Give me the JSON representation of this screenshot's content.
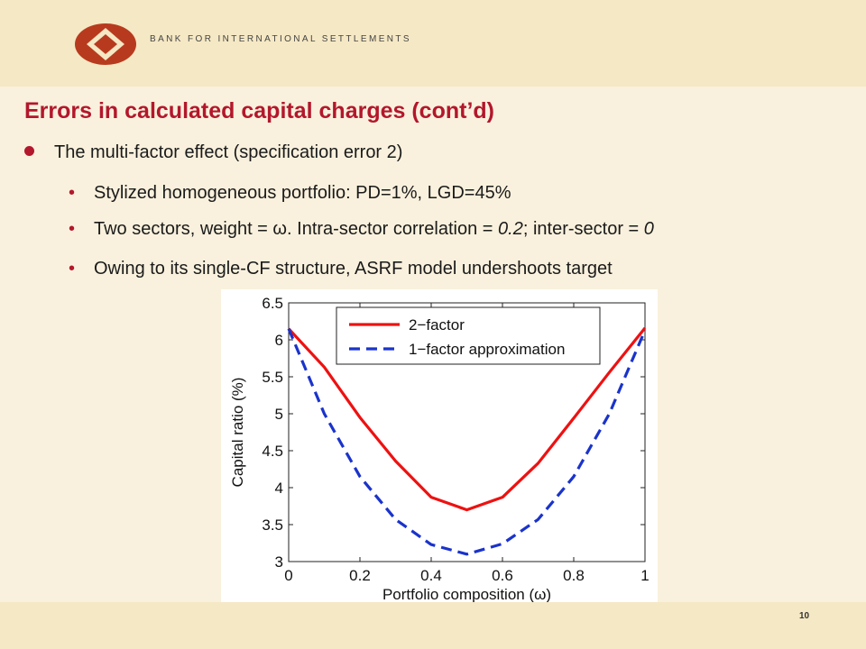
{
  "header": {
    "brand_text": "BANK FOR INTERNATIONAL SETTLEMENTS",
    "logo_icon": "bis-logo-icon",
    "logo_color": "#b83a1e"
  },
  "slide": {
    "title": "Errors in calculated capital charges (cont’d)",
    "bullet": "The multi-factor effect (specification error 2)",
    "subbullets": {
      "one": "Stylized homogeneous portfolio: PD=1%, LGD=45%",
      "two_a": "Two sectors, weight = ω. Intra-sector correlation = ",
      "two_b": "0.2",
      "two_c": "; inter-sector = ",
      "two_d": "0",
      "three": "Owing to its single-CF structure, ASRF model undershoots target"
    },
    "page_number": "10",
    "accent_color": "#b3172c"
  },
  "chart_data": {
    "type": "line",
    "xlabel": "Portfolio composition (ω)",
    "ylabel": "Capital ratio (%)",
    "xlim": [
      0,
      1
    ],
    "ylim": [
      3,
      6.5
    ],
    "x_ticks": [
      "0",
      "0.2",
      "0.4",
      "0.6",
      "0.8",
      "1"
    ],
    "y_ticks": [
      "3",
      "3.5",
      "4",
      "4.5",
      "5",
      "5.5",
      "6",
      "6.5"
    ],
    "grid": false,
    "legend_position": "top-right",
    "x": [
      0,
      0.1,
      0.2,
      0.3,
      0.4,
      0.5,
      0.6,
      0.7,
      0.8,
      0.9,
      1.0
    ],
    "series": [
      {
        "name": "2−factor",
        "style": "solid",
        "color": "#ee1111",
        "values": [
          6.15,
          5.63,
          4.95,
          4.36,
          3.87,
          3.7,
          3.87,
          4.33,
          4.94,
          5.56,
          6.16
        ]
      },
      {
        "name": "1−factor approximation",
        "style": "dashed",
        "color": "#1a33cc",
        "values": [
          6.15,
          5.0,
          4.15,
          3.57,
          3.23,
          3.1,
          3.24,
          3.57,
          4.15,
          5.0,
          6.13
        ]
      }
    ]
  }
}
